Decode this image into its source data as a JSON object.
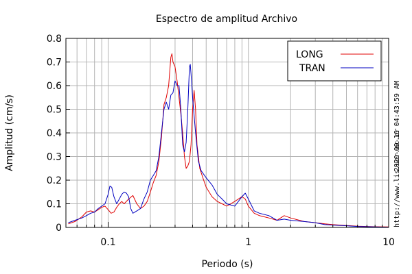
{
  "chart_data": {
    "type": "line",
    "title": "Espectro de amplitud Archivo",
    "xlabel": "Periodo (s)",
    "ylabel": "Amplitud (cm/s)",
    "xscale": "log",
    "xlim": [
      0.05,
      10
    ],
    "ylim": [
      0,
      0.8
    ],
    "grid": true,
    "legend_position": "top-right",
    "x_ticks": [
      {
        "value": 0.1,
        "label": "0.1"
      },
      {
        "value": 1,
        "label": "1"
      },
      {
        "value": 10,
        "label": "10"
      }
    ],
    "y_ticks": [
      {
        "value": 0,
        "label": "0"
      },
      {
        "value": 0.1,
        "label": "0.1"
      },
      {
        "value": 0.2,
        "label": "0.2"
      },
      {
        "value": 0.3,
        "label": "0.3"
      },
      {
        "value": 0.4,
        "label": "0.4"
      },
      {
        "value": 0.5,
        "label": "0.5"
      },
      {
        "value": 0.6,
        "label": "0.6"
      },
      {
        "value": 0.7,
        "label": "0.7"
      },
      {
        "value": 0.8,
        "label": "0.8"
      }
    ],
    "series": [
      {
        "name": "LONG",
        "color": "#e00000",
        "points": [
          [
            0.052,
            0.015
          ],
          [
            0.058,
            0.025
          ],
          [
            0.065,
            0.045
          ],
          [
            0.07,
            0.065
          ],
          [
            0.075,
            0.07
          ],
          [
            0.08,
            0.065
          ],
          [
            0.085,
            0.075
          ],
          [
            0.09,
            0.085
          ],
          [
            0.095,
            0.09
          ],
          [
            0.1,
            0.075
          ],
          [
            0.105,
            0.06
          ],
          [
            0.11,
            0.065
          ],
          [
            0.115,
            0.085
          ],
          [
            0.12,
            0.1
          ],
          [
            0.125,
            0.11
          ],
          [
            0.13,
            0.1
          ],
          [
            0.14,
            0.12
          ],
          [
            0.15,
            0.135
          ],
          [
            0.16,
            0.1
          ],
          [
            0.17,
            0.08
          ],
          [
            0.18,
            0.09
          ],
          [
            0.19,
            0.11
          ],
          [
            0.2,
            0.15
          ],
          [
            0.21,
            0.19
          ],
          [
            0.22,
            0.22
          ],
          [
            0.23,
            0.28
          ],
          [
            0.24,
            0.38
          ],
          [
            0.25,
            0.52
          ],
          [
            0.26,
            0.55
          ],
          [
            0.27,
            0.6
          ],
          [
            0.28,
            0.72
          ],
          [
            0.285,
            0.735
          ],
          [
            0.29,
            0.7
          ],
          [
            0.3,
            0.68
          ],
          [
            0.31,
            0.62
          ],
          [
            0.32,
            0.55
          ],
          [
            0.33,
            0.48
          ],
          [
            0.34,
            0.4
          ],
          [
            0.35,
            0.3
          ],
          [
            0.36,
            0.25
          ],
          [
            0.37,
            0.26
          ],
          [
            0.38,
            0.28
          ],
          [
            0.39,
            0.35
          ],
          [
            0.4,
            0.5
          ],
          [
            0.41,
            0.58
          ],
          [
            0.42,
            0.5
          ],
          [
            0.43,
            0.35
          ],
          [
            0.45,
            0.25
          ],
          [
            0.48,
            0.2
          ],
          [
            0.5,
            0.17
          ],
          [
            0.55,
            0.13
          ],
          [
            0.6,
            0.11
          ],
          [
            0.65,
            0.1
          ],
          [
            0.7,
            0.09
          ],
          [
            0.8,
            0.11
          ],
          [
            0.9,
            0.13
          ],
          [
            0.95,
            0.12
          ],
          [
            1.0,
            0.09
          ],
          [
            1.1,
            0.06
          ],
          [
            1.2,
            0.05
          ],
          [
            1.4,
            0.04
          ],
          [
            1.6,
            0.03
          ],
          [
            1.8,
            0.05
          ],
          [
            2.0,
            0.04
          ],
          [
            2.5,
            0.025
          ],
          [
            3.0,
            0.02
          ],
          [
            3.5,
            0.015
          ],
          [
            4.0,
            0.012
          ],
          [
            5.0,
            0.008
          ],
          [
            6.0,
            0.005
          ],
          [
            8.0,
            0.003
          ],
          [
            10.0,
            0.002
          ]
        ]
      },
      {
        "name": "TRAN",
        "color": "#0000c0",
        "points": [
          [
            0.052,
            0.02
          ],
          [
            0.058,
            0.03
          ],
          [
            0.065,
            0.04
          ],
          [
            0.07,
            0.05
          ],
          [
            0.075,
            0.06
          ],
          [
            0.08,
            0.065
          ],
          [
            0.085,
            0.08
          ],
          [
            0.09,
            0.09
          ],
          [
            0.095,
            0.1
          ],
          [
            0.1,
            0.14
          ],
          [
            0.103,
            0.175
          ],
          [
            0.106,
            0.17
          ],
          [
            0.11,
            0.13
          ],
          [
            0.115,
            0.1
          ],
          [
            0.12,
            0.12
          ],
          [
            0.125,
            0.14
          ],
          [
            0.13,
            0.15
          ],
          [
            0.135,
            0.145
          ],
          [
            0.14,
            0.13
          ],
          [
            0.145,
            0.08
          ],
          [
            0.15,
            0.06
          ],
          [
            0.16,
            0.07
          ],
          [
            0.17,
            0.08
          ],
          [
            0.18,
            0.12
          ],
          [
            0.19,
            0.15
          ],
          [
            0.2,
            0.2
          ],
          [
            0.21,
            0.22
          ],
          [
            0.22,
            0.24
          ],
          [
            0.23,
            0.3
          ],
          [
            0.24,
            0.4
          ],
          [
            0.25,
            0.5
          ],
          [
            0.26,
            0.53
          ],
          [
            0.27,
            0.5
          ],
          [
            0.28,
            0.56
          ],
          [
            0.29,
            0.57
          ],
          [
            0.3,
            0.62
          ],
          [
            0.31,
            0.6
          ],
          [
            0.32,
            0.6
          ],
          [
            0.33,
            0.5
          ],
          [
            0.34,
            0.35
          ],
          [
            0.35,
            0.32
          ],
          [
            0.36,
            0.36
          ],
          [
            0.37,
            0.5
          ],
          [
            0.38,
            0.68
          ],
          [
            0.385,
            0.69
          ],
          [
            0.39,
            0.65
          ],
          [
            0.4,
            0.55
          ],
          [
            0.42,
            0.4
          ],
          [
            0.44,
            0.28
          ],
          [
            0.46,
            0.24
          ],
          [
            0.5,
            0.21
          ],
          [
            0.55,
            0.18
          ],
          [
            0.6,
            0.14
          ],
          [
            0.65,
            0.12
          ],
          [
            0.7,
            0.1
          ],
          [
            0.8,
            0.09
          ],
          [
            0.9,
            0.13
          ],
          [
            0.95,
            0.145
          ],
          [
            1.0,
            0.12
          ],
          [
            1.1,
            0.07
          ],
          [
            1.2,
            0.06
          ],
          [
            1.4,
            0.05
          ],
          [
            1.6,
            0.03
          ],
          [
            1.8,
            0.035
          ],
          [
            2.0,
            0.03
          ],
          [
            2.5,
            0.025
          ],
          [
            3.0,
            0.02
          ],
          [
            3.5,
            0.012
          ],
          [
            4.0,
            0.01
          ],
          [
            5.0,
            0.007
          ],
          [
            6.0,
            0.004
          ],
          [
            8.0,
            0.002
          ],
          [
            10.0,
            0.001
          ]
        ]
      }
    ]
  },
  "side_text": {
    "timestamp": "2020-09-16 04:43:59 AM",
    "url": "http://www.lis.ucr.ac.cr"
  }
}
